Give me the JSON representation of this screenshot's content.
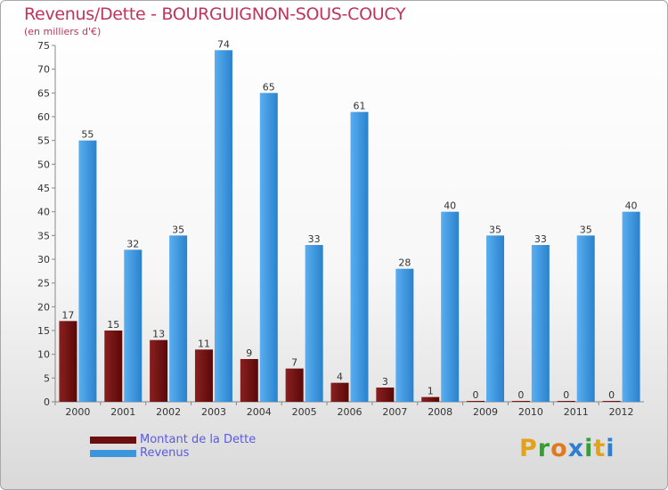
{
  "header": {
    "title": "Revenus/Dette - BOURGUIGNON-SOUS-COUCY",
    "subtitle": "(en milliers d'€)"
  },
  "chart_data": {
    "type": "bar",
    "categories": [
      "2000",
      "2001",
      "2002",
      "2003",
      "2004",
      "2005",
      "2006",
      "2007",
      "2008",
      "2009",
      "2010",
      "2011",
      "2012"
    ],
    "series": [
      {
        "name": "Montant de la Dette",
        "values": [
          17,
          15,
          13,
          11,
          9,
          7,
          4,
          3,
          1,
          0,
          0,
          0,
          0
        ],
        "color": "#7a1414"
      },
      {
        "name": "Revenus",
        "values": [
          55,
          32,
          35,
          74,
          65,
          33,
          61,
          28,
          40,
          35,
          33,
          35,
          40
        ],
        "color": "#3d96dc"
      }
    ],
    "ylim": [
      0,
      75
    ],
    "ytick_step": 5,
    "xlabel": "",
    "ylabel": "",
    "grid": false,
    "legend_position": "bottom-left"
  },
  "legend": {
    "items": [
      {
        "label": "Montant de la Dette",
        "color": "#6b0f0f"
      },
      {
        "label": "Revenus",
        "color": "#3d96dc"
      }
    ]
  },
  "brand": {
    "logo_letters": [
      "P",
      "r",
      "o",
      "x",
      "i",
      "t",
      "i"
    ],
    "logo_colors": [
      "#e3a21b",
      "#3d9a3a",
      "#e07a20",
      "#2e7fd0",
      "#3d9a3a",
      "#e3a21b",
      "#2e7fd0"
    ]
  }
}
